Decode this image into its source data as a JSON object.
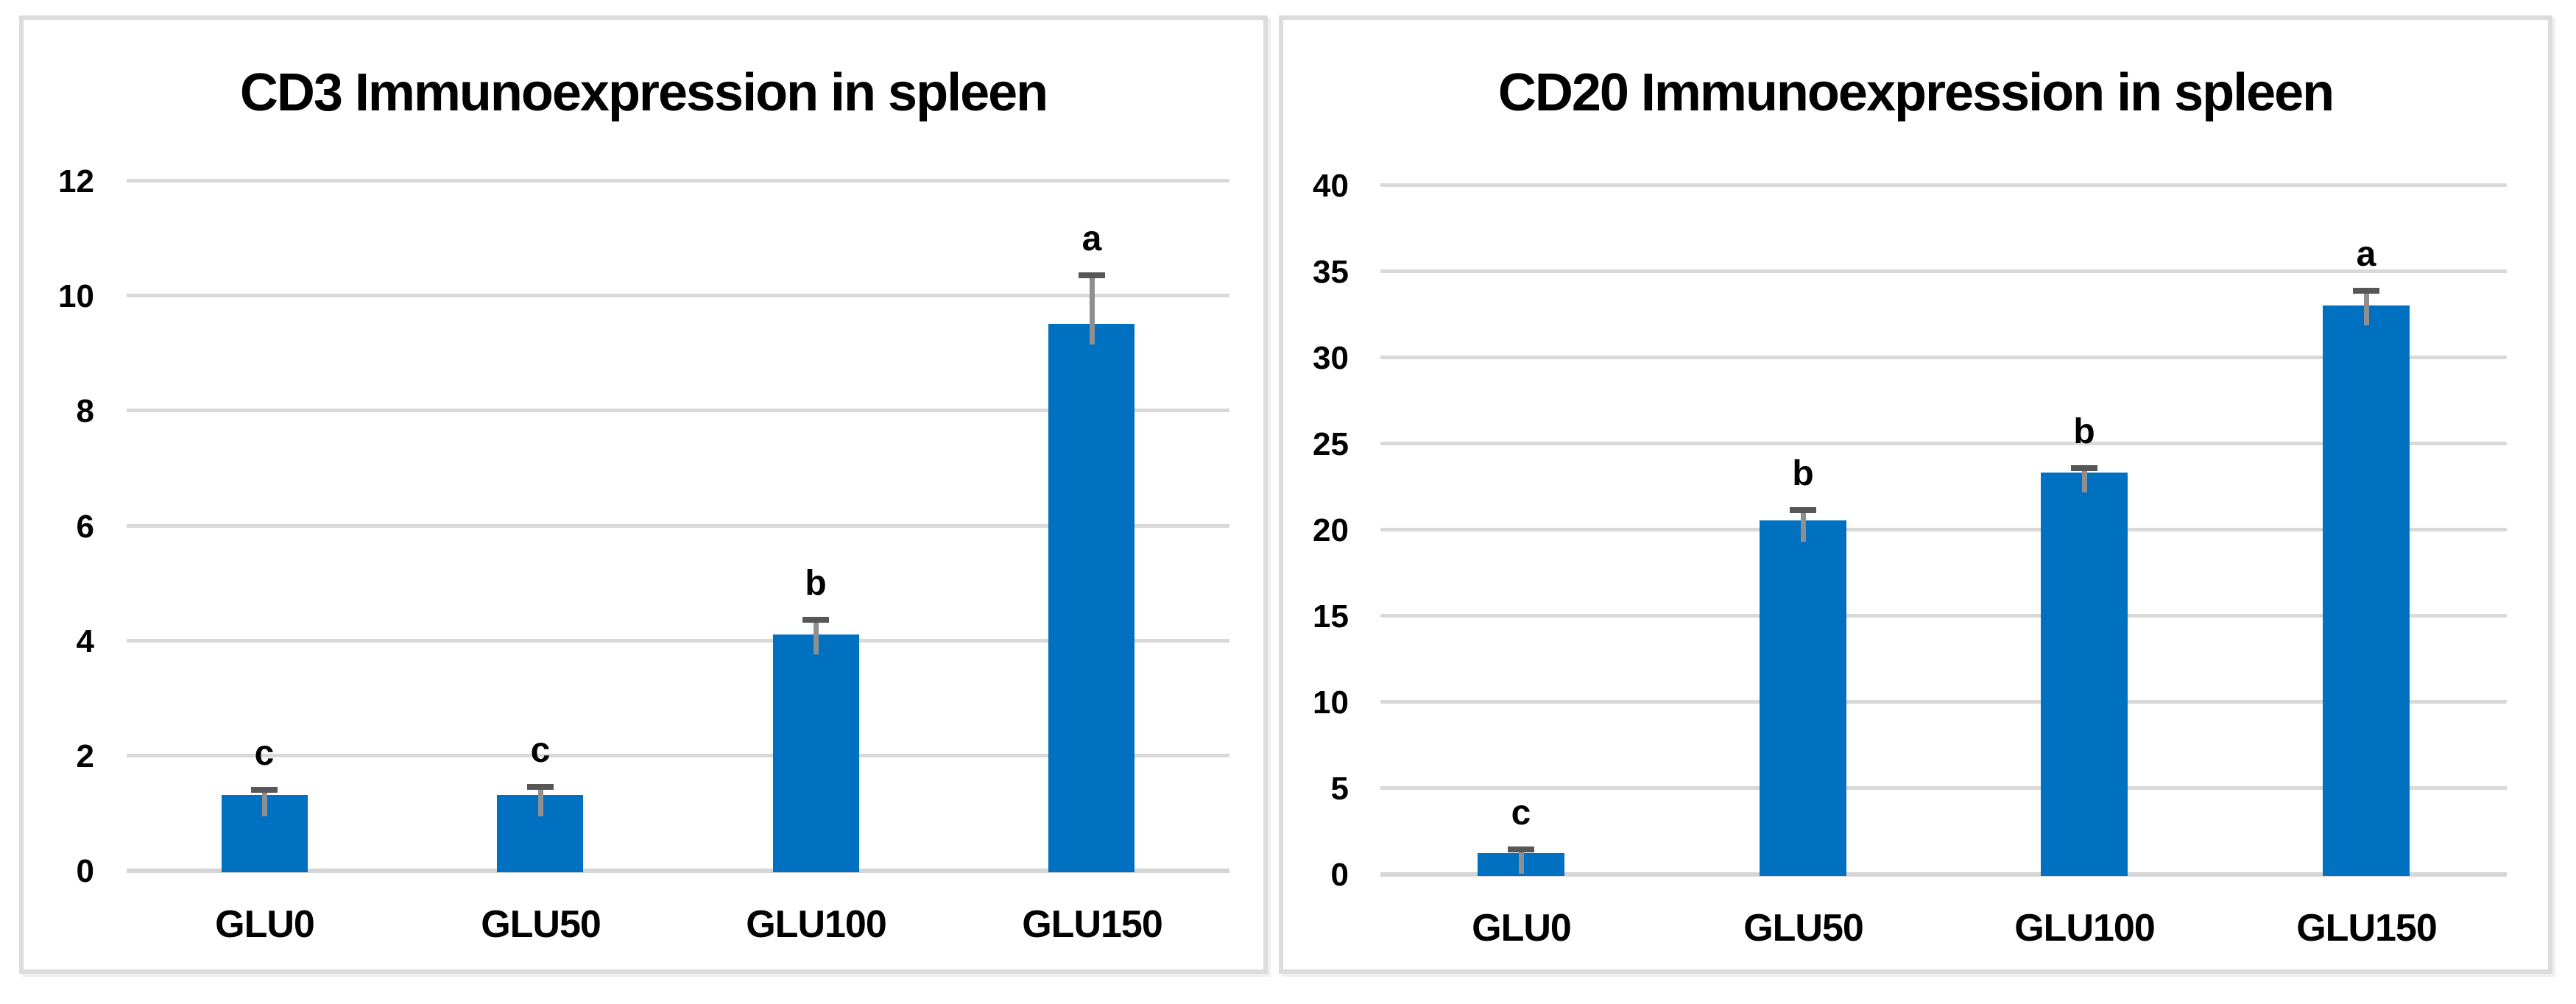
{
  "colors": {
    "bar": "#0070C0",
    "gridline": "#d9d9d9",
    "axis_line": "#d5d5d5",
    "error_line": "#8f8f8f",
    "error_cap": "#575757",
    "panel_border": "#dcdcdc",
    "text": "#000000",
    "background": "#ffffff"
  },
  "chart_data": [
    {
      "type": "bar",
      "title": "CD3 Immunoexpression in spleen",
      "categories": [
        "GLU0",
        "GLU50",
        "GLU100",
        "GLU150"
      ],
      "values": [
        1.3,
        1.3,
        4.1,
        9.5
      ],
      "error_bars": [
        0.15,
        0.2,
        0.3,
        0.9
      ],
      "significance_letters": [
        "c",
        "c",
        "b",
        "a"
      ],
      "y_ticks": [
        0,
        2,
        4,
        6,
        8,
        10,
        12
      ],
      "ylim": [
        0,
        12
      ],
      "xlabel": "",
      "ylabel": "",
      "grid": "horizontal",
      "legend": "none",
      "bar_color": "#0070C0"
    },
    {
      "type": "bar",
      "title": "CD20 Immunoexpression in spleen",
      "categories": [
        "GLU0",
        "GLU50",
        "GLU100",
        "GLU150"
      ],
      "values": [
        1.2,
        20.5,
        23.3,
        33.0
      ],
      "error_bars": [
        0.4,
        0.8,
        0.4,
        1.0
      ],
      "significance_letters": [
        "c",
        "b",
        "b",
        "a"
      ],
      "y_ticks": [
        0,
        5,
        10,
        15,
        20,
        25,
        30,
        35,
        40
      ],
      "ylim": [
        0,
        40
      ],
      "xlabel": "",
      "ylabel": "",
      "grid": "horizontal",
      "legend": "none",
      "bar_color": "#0070C0"
    }
  ]
}
